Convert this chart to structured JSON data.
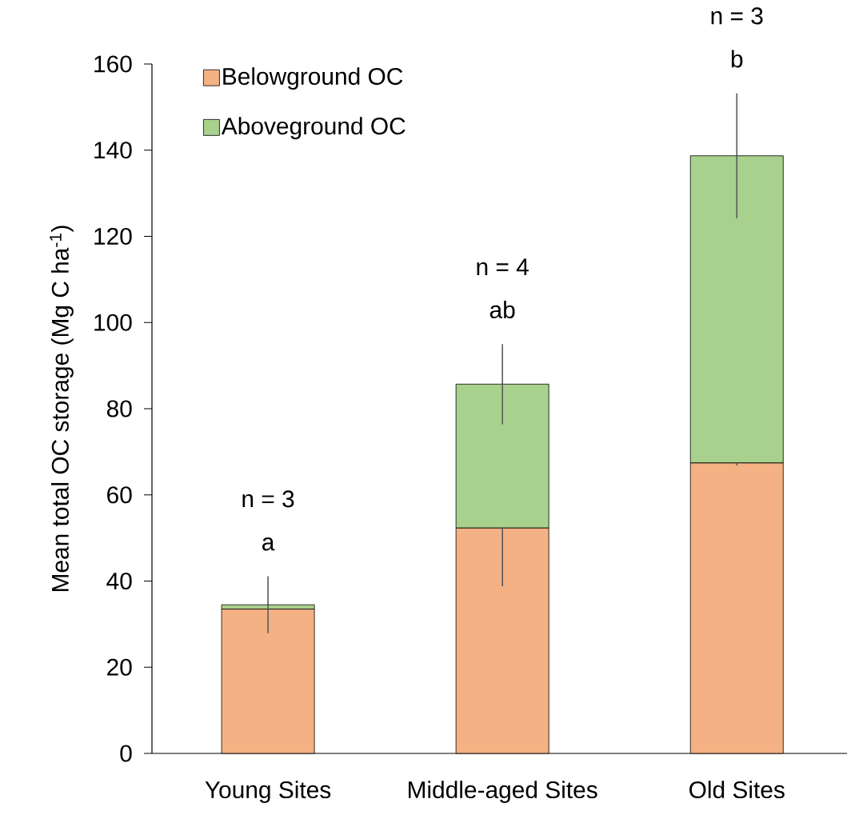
{
  "chart_data": {
    "type": "bar",
    "stacked": true,
    "ylabel": "Mean total OC storage (Mg C ha$^{-1}$)",
    "categories": [
      "Young Sites",
      "Middle-aged Sites",
      "Old Sites"
    ],
    "series": [
      {
        "name": "Belowground OC",
        "color": "#f4b183",
        "values": [
          33.5,
          52.3,
          67.4
        ],
        "errors": [
          null,
          13.5,
          0.6
        ]
      },
      {
        "name": "Aboveground OC",
        "color": "#a9d18e",
        "values": [
          1.0,
          33.4,
          71.3
        ],
        "errors": [
          6.6,
          9.3,
          14.5
        ]
      }
    ],
    "ylim": [
      0,
      160
    ],
    "yticks": [
      0,
      20,
      40,
      60,
      80,
      100,
      120,
      140,
      160
    ],
    "legend": "top left",
    "grid": false,
    "annotations": [
      "n = 3",
      "a",
      "n = 4",
      "ab",
      "n = 3",
      "b"
    ]
  }
}
